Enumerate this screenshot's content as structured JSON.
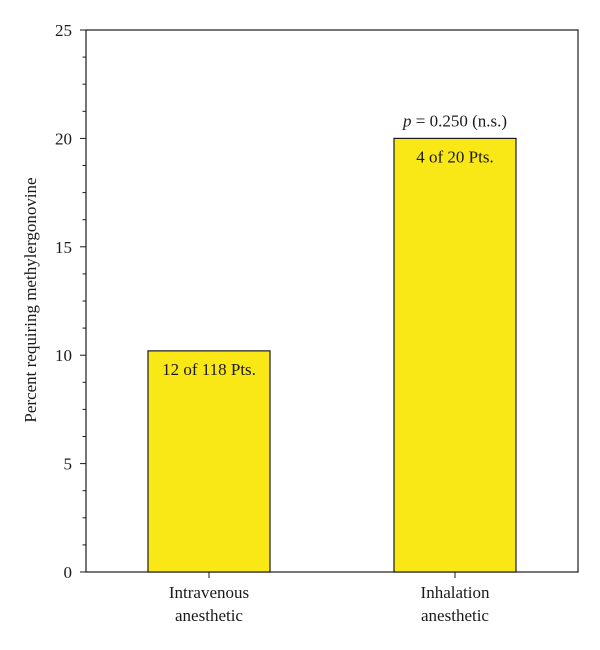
{
  "chart_data": {
    "type": "bar",
    "categories": [
      [
        "Intravenous",
        "anesthetic"
      ],
      [
        "Inhalation",
        "anesthetic"
      ]
    ],
    "values": [
      10.2,
      20.0
    ],
    "bar_labels": [
      "12 of 118 Pts.",
      "4 of 20 Pts."
    ],
    "ylabel": "Percent requiring methylergonovine",
    "xlabel": "",
    "title": "",
    "ylim": [
      0,
      25
    ],
    "yticks": [
      0,
      5,
      10,
      15,
      20,
      25
    ],
    "grid": false,
    "legend": "none",
    "annotation": {
      "italic": "p",
      "text": " = 0.250 (n.s.)",
      "category_index": 1
    },
    "colors": {
      "bar_fill": "#f9e816",
      "bar_stroke": "#1a1a1a",
      "axis": "#1a1a1a"
    }
  }
}
